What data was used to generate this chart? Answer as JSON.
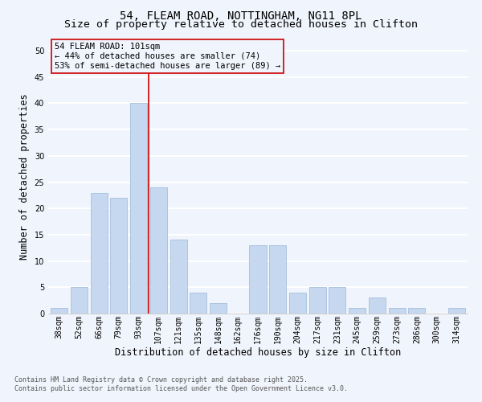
{
  "title_line1": "54, FLEAM ROAD, NOTTINGHAM, NG11 8PL",
  "title_line2": "Size of property relative to detached houses in Clifton",
  "xlabel": "Distribution of detached houses by size in Clifton",
  "ylabel": "Number of detached properties",
  "categories": [
    "38sqm",
    "52sqm",
    "66sqm",
    "79sqm",
    "93sqm",
    "107sqm",
    "121sqm",
    "135sqm",
    "148sqm",
    "162sqm",
    "176sqm",
    "190sqm",
    "204sqm",
    "217sqm",
    "231sqm",
    "245sqm",
    "259sqm",
    "273sqm",
    "286sqm",
    "300sqm",
    "314sqm"
  ],
  "values": [
    1,
    5,
    23,
    22,
    40,
    24,
    14,
    4,
    2,
    0,
    13,
    13,
    4,
    5,
    5,
    1,
    3,
    1,
    1,
    0,
    1
  ],
  "bar_color": "#c5d8f0",
  "bar_edgecolor": "#9ab8d8",
  "vline_index": 4.5,
  "vline_color": "#cc0000",
  "annotation_line1": "54 FLEAM ROAD: 101sqm",
  "annotation_line2": "← 44% of detached houses are smaller (74)",
  "annotation_line3": "53% of semi-detached houses are larger (89) →",
  "annotation_box_edgecolor": "#cc0000",
  "ylim": [
    0,
    52
  ],
  "yticks": [
    0,
    5,
    10,
    15,
    20,
    25,
    30,
    35,
    40,
    45,
    50
  ],
  "bg_color": "#f0f4fc",
  "grid_color": "#ffffff",
  "footer_line1": "Contains HM Land Registry data © Crown copyright and database right 2025.",
  "footer_line2": "Contains public sector information licensed under the Open Government Licence v3.0.",
  "title1_fontsize": 10,
  "title2_fontsize": 9.5,
  "axis_label_fontsize": 8.5,
  "tick_fontsize": 7,
  "annot_fontsize": 7.5,
  "footer_fontsize": 6
}
